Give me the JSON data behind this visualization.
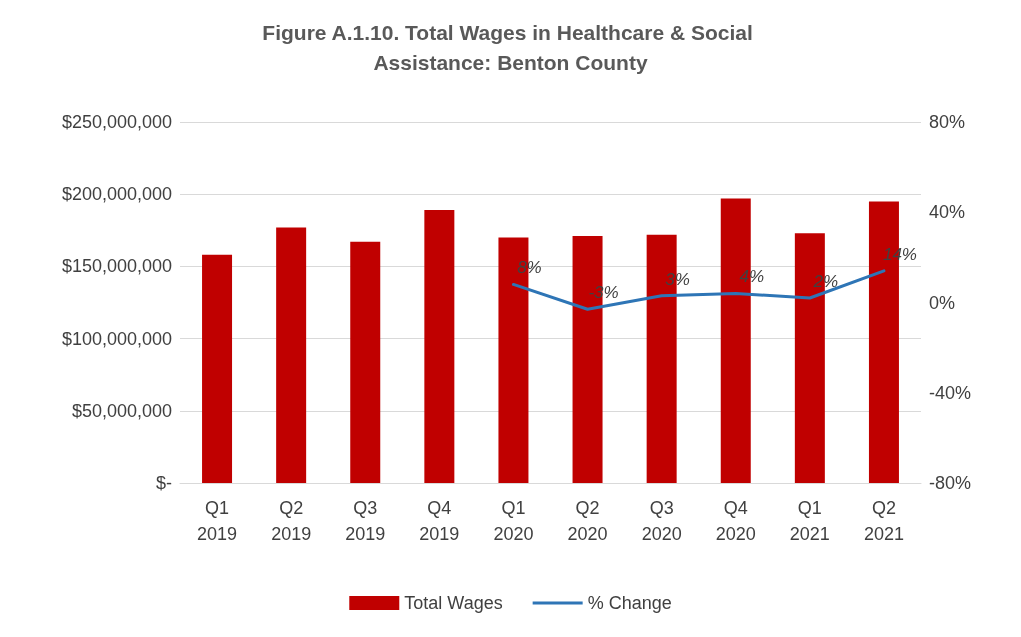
{
  "chart_data": {
    "type": "bar",
    "title": "Figure A.1.10. Total Wages in Healthcare & Social Assistance: Benton County",
    "categories": [
      "Q1\n2019",
      "Q2\n2019",
      "Q3\n2019",
      "Q4\n2019",
      "Q1\n2020",
      "Q2\n2020",
      "Q3\n2020",
      "Q4\n2020",
      "Q1\n2021",
      "Q2\n2021"
    ],
    "series": [
      {
        "name": "Total Wages",
        "color": "#c00000",
        "values": [
          158000000,
          177000000,
          167000000,
          189000000,
          170000000,
          171000000,
          172000000,
          197000000,
          173000000,
          195000000
        ]
      },
      {
        "name": "% Change",
        "type": "line",
        "axis": "y2",
        "color": "#2e75b6",
        "marker": "none",
        "values": [
          null,
          null,
          null,
          null,
          8,
          -3,
          3,
          4,
          2,
          14
        ],
        "value_labels": [
          null,
          null,
          null,
          null,
          "8%",
          "-3%",
          "3%",
          "4%",
          "2%",
          "14%"
        ]
      }
    ],
    "ylim": [
      0,
      250000000
    ],
    "yticks": [
      {
        "value": 0,
        "label": "$-"
      },
      {
        "value": 50000000,
        "label": "$50,000,000"
      },
      {
        "value": 100000000,
        "label": "$100,000,000"
      },
      {
        "value": 150000000,
        "label": "$150,000,000"
      },
      {
        "value": 200000000,
        "label": "$200,000,000"
      },
      {
        "value": 250000000,
        "label": "$250,000,000"
      }
    ],
    "y2lim": [
      -80,
      80
    ],
    "y2ticks": [
      {
        "value": -80,
        "label": "-80%"
      },
      {
        "value": -40,
        "label": "-40%"
      },
      {
        "value": 0,
        "label": "0%"
      },
      {
        "value": 40,
        "label": "40%"
      },
      {
        "value": 80,
        "label": "80%"
      }
    ],
    "grid": "y",
    "legend": "bottom"
  }
}
